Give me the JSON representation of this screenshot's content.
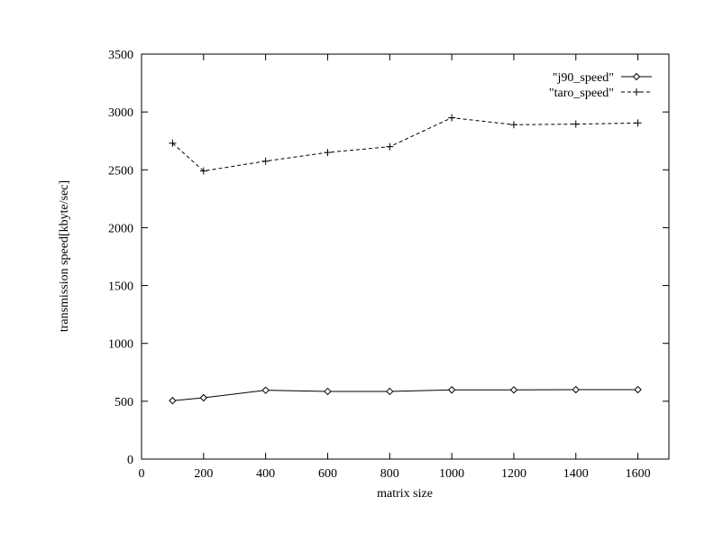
{
  "chart_data": {
    "type": "line",
    "title": "",
    "xlabel": "matrix size",
    "ylabel": "transmission speed[kbyte/sec]",
    "xlim": [
      0,
      1700
    ],
    "ylim": [
      0,
      3500
    ],
    "xticks": [
      0,
      200,
      400,
      600,
      800,
      1000,
      1200,
      1400,
      1600
    ],
    "yticks": [
      0,
      500,
      1000,
      1500,
      2000,
      2500,
      3000,
      3500
    ],
    "grid": false,
    "legend_position": "top-right",
    "series": [
      {
        "name": "\"j90_speed\"",
        "line_style": "solid",
        "marker": "diamond",
        "x": [
          100,
          200,
          400,
          600,
          800,
          1000,
          1200,
          1400,
          1600
        ],
        "y": [
          505,
          530,
          595,
          585,
          585,
          598,
          598,
          600,
          600
        ]
      },
      {
        "name": "\"taro_speed\"",
        "line_style": "dashed",
        "marker": "plus",
        "x": [
          100,
          200,
          400,
          600,
          800,
          1000,
          1200,
          1400,
          1600
        ],
        "y": [
          2730,
          2490,
          2575,
          2650,
          2700,
          2950,
          2890,
          2895,
          2905
        ]
      }
    ]
  }
}
